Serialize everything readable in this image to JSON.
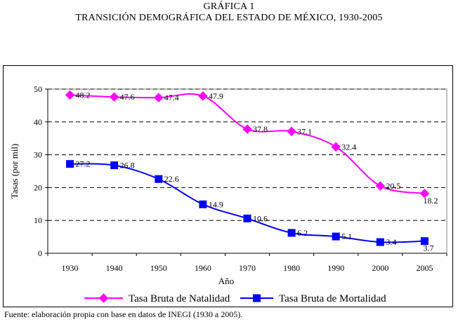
{
  "header": {
    "figure_label": "GRÁFICA 1",
    "figure_title": "TRANSICIÓN DEMOGRÁFICA DEL  ESTADO DE MÉXICO, 1930-2005"
  },
  "footer": {
    "source": "Fuente: elaboración propia con base en datos de INEGI (1930 a 2005)."
  },
  "chart_data": {
    "type": "line",
    "title": "TRANSICIÓN DEMOGRÁFICA DEL  ESTADO DE MÉXICO, 1930-2005",
    "xlabel": "Año",
    "ylabel": "Tasas (por mil)",
    "categories": [
      "1930",
      "1940",
      "1950",
      "1960",
      "1970",
      "1980",
      "1990",
      "2000",
      "2005"
    ],
    "y_ticks": [
      "0",
      "10",
      "20",
      "30",
      "40",
      "50"
    ],
    "ylim": [
      0,
      50
    ],
    "grid": "horizontal dashed",
    "legend_position": "bottom",
    "series": [
      {
        "name": "Tasa Bruta de Natalidad",
        "color": "#ff00ff",
        "marker": "diamond",
        "values": [
          48.2,
          47.6,
          47.4,
          47.9,
          37.8,
          37.1,
          32.4,
          20.5,
          18.2
        ],
        "labels": [
          "48.2",
          "47.6",
          "47.4",
          "47.9",
          "37.8",
          "37.1",
          "32.4",
          "20.5",
          "18.2"
        ]
      },
      {
        "name": "Tasa Bruta de Mortalidad",
        "color": "#0000ff",
        "marker": "square",
        "values": [
          27.2,
          26.8,
          22.6,
          14.9,
          10.6,
          6.2,
          5.1,
          3.4,
          3.7
        ],
        "labels": [
          "27.2",
          "26.8",
          "22.6",
          "14.9",
          "10.6",
          "6.2",
          "5.1",
          "3.4",
          "3.7"
        ]
      }
    ]
  }
}
